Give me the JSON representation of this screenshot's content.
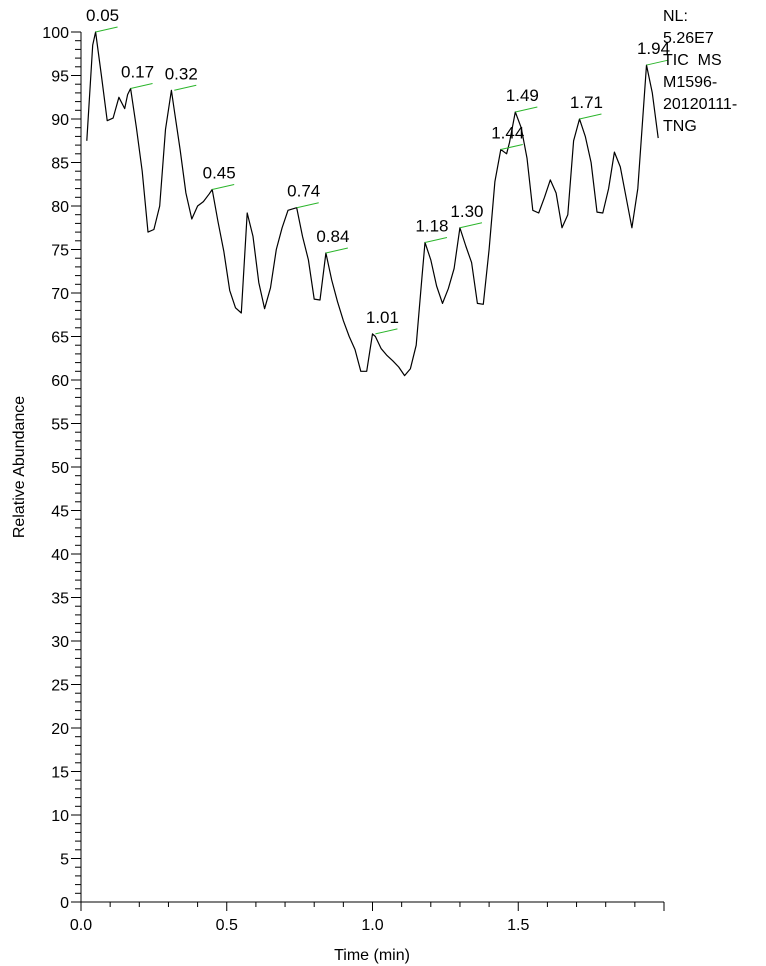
{
  "chart_data": {
    "type": "line",
    "xlabel": "Time (min)",
    "ylabel": "Relative Abundance",
    "xlim": [
      0,
      2.0
    ],
    "ylim": [
      0,
      100
    ],
    "x_ticks": [
      "0.0",
      "0.5",
      "1.0",
      "1.5"
    ],
    "x_tick_values": [
      0.0,
      0.5,
      1.0,
      1.5
    ],
    "y_ticks": [
      "0",
      "5",
      "10",
      "15",
      "20",
      "25",
      "30",
      "35",
      "40",
      "45",
      "50",
      "55",
      "60",
      "65",
      "70",
      "75",
      "80",
      "85",
      "90",
      "95",
      "100"
    ],
    "y_tick_values": [
      0,
      5,
      10,
      15,
      20,
      25,
      30,
      35,
      40,
      45,
      50,
      55,
      60,
      65,
      70,
      75,
      80,
      85,
      90,
      95,
      100
    ],
    "info_lines": [
      "NL:",
      "5.26E7",
      "TIC  MS",
      "M1596-",
      "20120111-",
      "TNG"
    ],
    "series": [
      {
        "x": [
          0.02,
          0.04,
          0.05,
          0.07,
          0.09,
          0.11,
          0.13,
          0.15,
          0.16,
          0.17,
          0.19,
          0.21,
          0.23,
          0.25,
          0.27,
          0.29,
          0.31,
          0.32,
          0.34,
          0.36,
          0.38,
          0.4,
          0.42,
          0.44,
          0.45,
          0.47,
          0.49,
          0.51,
          0.53,
          0.55,
          0.57,
          0.59,
          0.61,
          0.63,
          0.65,
          0.67,
          0.69,
          0.71,
          0.74,
          0.76,
          0.78,
          0.8,
          0.82,
          0.84,
          0.86,
          0.88,
          0.9,
          0.92,
          0.94,
          0.96,
          0.98,
          1.0,
          1.01,
          1.03,
          1.05,
          1.07,
          1.09,
          1.11,
          1.13,
          1.15,
          1.17,
          1.18,
          1.2,
          1.22,
          1.24,
          1.26,
          1.28,
          1.3,
          1.32,
          1.34,
          1.36,
          1.38,
          1.4,
          1.42,
          1.44,
          1.46,
          1.47,
          1.49,
          1.51,
          1.53,
          1.55,
          1.57,
          1.59,
          1.61,
          1.63,
          1.65,
          1.67,
          1.69,
          1.71,
          1.73,
          1.75,
          1.77,
          1.79,
          1.81,
          1.83,
          1.85,
          1.87,
          1.89,
          1.91,
          1.94,
          1.96,
          1.98
        ],
        "y": [
          87.5,
          98.5,
          100,
          95,
          89.8,
          90.1,
          92.5,
          91.2,
          92.8,
          93.5,
          89,
          84,
          77,
          77.3,
          80,
          88.8,
          93.3,
          91,
          86.5,
          81.5,
          78.5,
          80,
          80.5,
          81.4,
          81.9,
          78.2,
          74.8,
          70.3,
          68.3,
          67.7,
          79.2,
          76.5,
          71.2,
          68.2,
          70.6,
          75,
          77.5,
          79.5,
          79.8,
          76.5,
          73.8,
          69.3,
          69.2,
          74.6,
          71.5,
          69,
          66.8,
          65,
          63.5,
          61,
          61,
          65.3,
          65,
          63.6,
          62.8,
          62.2,
          61.5,
          60.5,
          61.3,
          64,
          72,
          75.8,
          73.8,
          70.8,
          68.8,
          70.5,
          72.8,
          77.5,
          75.4,
          73.5,
          68.8,
          68.7,
          75,
          82.8,
          86.5,
          86,
          87.3,
          90.8,
          89,
          85.5,
          79.5,
          79.2,
          81,
          83,
          81.5,
          77.5,
          79,
          87.5,
          90,
          88,
          85,
          79.3,
          79.2,
          82,
          86.2,
          84.5,
          81,
          77.5,
          82,
          96.2,
          93,
          87.8
        ]
      }
    ],
    "peak_labels": [
      {
        "text": "0.05",
        "x": 0.05,
        "y": 100
      },
      {
        "text": "0.17",
        "x": 0.17,
        "y": 93.5
      },
      {
        "text": "0.32",
        "x": 0.32,
        "y": 93.3
      },
      {
        "text": "0.45",
        "x": 0.45,
        "y": 81.9
      },
      {
        "text": "0.74",
        "x": 0.74,
        "y": 79.8
      },
      {
        "text": "0.84",
        "x": 0.84,
        "y": 74.6
      },
      {
        "text": "1.01",
        "x": 1.01,
        "y": 65.3
      },
      {
        "text": "1.18",
        "x": 1.18,
        "y": 75.8
      },
      {
        "text": "1.30",
        "x": 1.3,
        "y": 77.5
      },
      {
        "text": "1.44",
        "x": 1.44,
        "y": 86.5
      },
      {
        "text": "1.49",
        "x": 1.49,
        "y": 90.8
      },
      {
        "text": "1.71",
        "x": 1.71,
        "y": 90.0
      },
      {
        "text": "1.94",
        "x": 1.94,
        "y": 96.2
      }
    ],
    "colors": {
      "trace": "#000000",
      "leader": "#2bb52b",
      "axis": "#000000"
    }
  }
}
